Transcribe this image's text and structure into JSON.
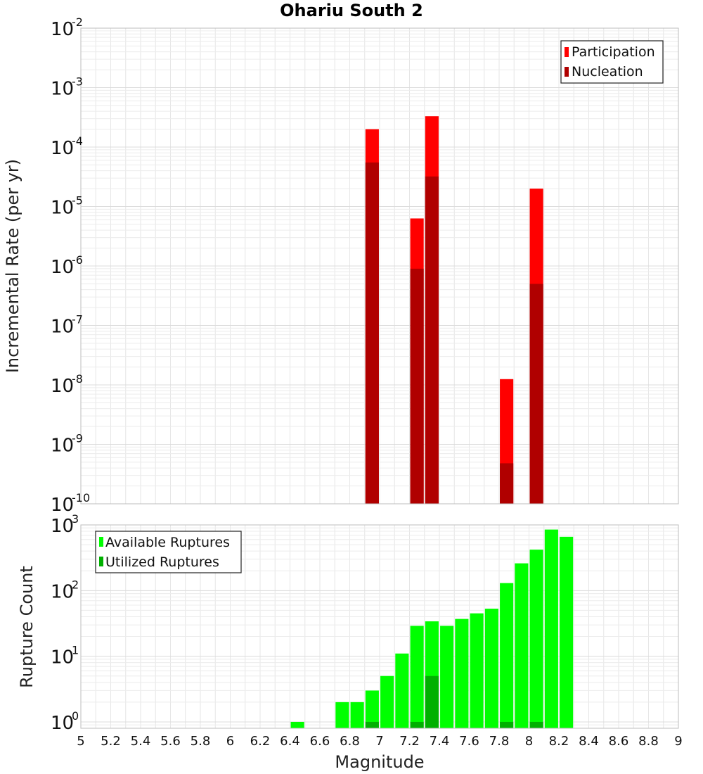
{
  "title": "Ohariu South 2",
  "xlabel": "Magnitude",
  "colors": {
    "participation": "#ff0000",
    "nucleation": "#b00000",
    "available": "#00ff00",
    "utilized": "#00b000",
    "grid": "#e6e6e6",
    "frame": "#bdbdbd"
  },
  "chart_data": [
    {
      "type": "bar",
      "ylabel": "Incremental Rate (per yr)",
      "yscale": "log",
      "xlim": [
        5,
        9
      ],
      "ylim": [
        1e-10,
        0.01
      ],
      "bar_width": 0.09,
      "legend_position": "top-right",
      "yticks": [
        {
          "base": "10",
          "exp": "-2",
          "value": 0.01
        },
        {
          "base": "10",
          "exp": "-3",
          "value": 0.001
        },
        {
          "base": "10",
          "exp": "-4",
          "value": 0.0001
        },
        {
          "base": "10",
          "exp": "-5",
          "value": 1e-05
        },
        {
          "base": "10",
          "exp": "-6",
          "value": 1e-06
        },
        {
          "base": "10",
          "exp": "-7",
          "value": 1e-07
        },
        {
          "base": "10",
          "exp": "-8",
          "value": 1e-08
        },
        {
          "base": "10",
          "exp": "-9",
          "value": 1e-09
        },
        {
          "base": "10",
          "exp": "-10",
          "value": 1e-10
        }
      ],
      "series": [
        {
          "name": "Participation",
          "x": [
            6.95,
            7.25,
            7.35,
            7.85,
            8.05
          ],
          "values": [
            0.0002,
            6.3e-06,
            0.00033,
            1.25e-08,
            2e-05
          ]
        },
        {
          "name": "Nucleation",
          "x": [
            6.95,
            7.25,
            7.35,
            7.85,
            8.05
          ],
          "values": [
            5.5e-05,
            9e-07,
            3.2e-05,
            4.8e-10,
            5e-07
          ]
        }
      ]
    },
    {
      "type": "bar",
      "ylabel": "Rupture Count",
      "yscale": "log",
      "xlim": [
        5,
        9
      ],
      "ylim": [
        0.8,
        1000
      ],
      "bar_width": 0.09,
      "legend_position": "top-left",
      "yticks": [
        {
          "base": "10",
          "exp": "3",
          "value": 1000
        },
        {
          "base": "10",
          "exp": "2",
          "value": 100
        },
        {
          "base": "10",
          "exp": "1",
          "value": 10
        },
        {
          "base": "10",
          "exp": "0",
          "value": 1
        }
      ],
      "xticks": [
        "5",
        "5.2",
        "5.4",
        "5.6",
        "5.8",
        "6",
        "6.2",
        "6.4",
        "6.6",
        "6.8",
        "7",
        "7.2",
        "7.4",
        "7.6",
        "7.8",
        "8",
        "8.2",
        "8.4",
        "8.6",
        "8.8",
        "9"
      ],
      "series": [
        {
          "name": "Available Ruptures",
          "x": [
            6.45,
            6.75,
            6.85,
            6.95,
            7.05,
            7.15,
            7.25,
            7.35,
            7.45,
            7.55,
            7.65,
            7.75,
            7.85,
            7.95,
            8.05,
            8.15,
            8.25
          ],
          "values": [
            1,
            2,
            2,
            3,
            5,
            11,
            29,
            34,
            29,
            37,
            45,
            53,
            130,
            260,
            420,
            850,
            660
          ]
        },
        {
          "name": "Utilized Ruptures",
          "x": [
            6.95,
            7.25,
            7.35,
            7.85,
            8.05
          ],
          "values": [
            1,
            1,
            5,
            1,
            1
          ]
        }
      ]
    }
  ]
}
